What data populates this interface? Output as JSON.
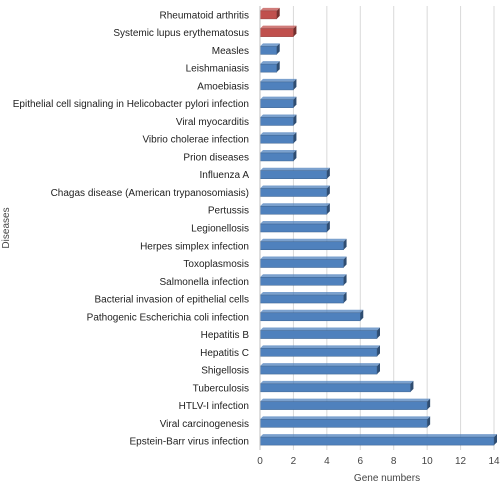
{
  "chart_data": {
    "type": "bar",
    "orientation": "horizontal",
    "title": "",
    "xlabel": "Gene numbers",
    "ylabel": "Diseases",
    "xlim": [
      0,
      14
    ],
    "xticks": [
      0,
      2,
      4,
      6,
      8,
      10,
      12,
      14
    ],
    "grid": true,
    "legend": "none",
    "colors": {
      "default": "#4f81bd",
      "highlight": "#c0504d"
    },
    "bars": [
      {
        "category": "Rheumatoid arthritis",
        "value": 1,
        "color": "highlight"
      },
      {
        "category": "Systemic lupus erythematosus",
        "value": 2,
        "color": "highlight"
      },
      {
        "category": "Measles",
        "value": 1,
        "color": "default"
      },
      {
        "category": "Leishmaniasis",
        "value": 1,
        "color": "default"
      },
      {
        "category": "Amoebiasis",
        "value": 2,
        "color": "default"
      },
      {
        "category": "Epithelial cell signaling in Helicobacter pylori infection",
        "value": 2,
        "color": "default"
      },
      {
        "category": "Viral myocarditis",
        "value": 2,
        "color": "default"
      },
      {
        "category": "Vibrio cholerae infection",
        "value": 2,
        "color": "default"
      },
      {
        "category": "Prion diseases",
        "value": 2,
        "color": "default"
      },
      {
        "category": "Influenza A",
        "value": 4,
        "color": "default"
      },
      {
        "category": "Chagas disease (American trypanosomiasis)",
        "value": 4,
        "color": "default"
      },
      {
        "category": "Pertussis",
        "value": 4,
        "color": "default"
      },
      {
        "category": "Legionellosis",
        "value": 4,
        "color": "default"
      },
      {
        "category": "Herpes simplex infection",
        "value": 5,
        "color": "default"
      },
      {
        "category": "Toxoplasmosis",
        "value": 5,
        "color": "default"
      },
      {
        "category": "Salmonella infection",
        "value": 5,
        "color": "default"
      },
      {
        "category": "Bacterial invasion of epithelial cells",
        "value": 5,
        "color": "default"
      },
      {
        "category": "Pathogenic Escherichia coli infection",
        "value": 6,
        "color": "default"
      },
      {
        "category": "Hepatitis B",
        "value": 7,
        "color": "default"
      },
      {
        "category": "Hepatitis C",
        "value": 7,
        "color": "default"
      },
      {
        "category": "Shigellosis",
        "value": 7,
        "color": "default"
      },
      {
        "category": "Tuberculosis",
        "value": 9,
        "color": "default"
      },
      {
        "category": "HTLV-I infection",
        "value": 10,
        "color": "default"
      },
      {
        "category": "Viral carcinogenesis",
        "value": 10,
        "color": "default"
      },
      {
        "category": "Epstein-Barr virus infection",
        "value": 14,
        "color": "default"
      }
    ]
  }
}
